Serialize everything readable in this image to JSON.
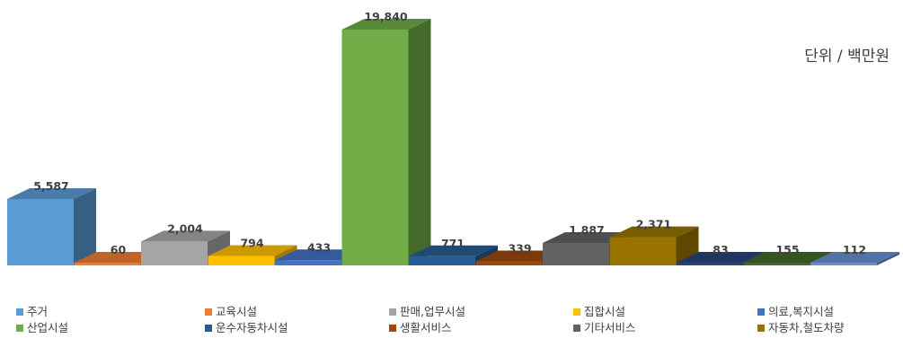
{
  "chart_data": {
    "type": "bar",
    "style": "3d-column",
    "unit_label": "단위 / 백만원",
    "legend_position": "bottom",
    "grid": false,
    "categories": [
      "주거",
      "교육시설",
      "판매,업무시설",
      "집합시설",
      "의료,복지시설",
      "산업시설",
      "운수자동차시설",
      "생활서비스",
      "기타서비스",
      "자동차,철도차량",
      "",
      "",
      ""
    ],
    "values": [
      5587,
      60,
      2004,
      794,
      433,
      19840,
      771,
      339,
      1887,
      2371,
      83,
      155,
      112
    ],
    "value_labels": [
      "5,587",
      "60",
      "2,004",
      "794",
      "433",
      "19,840",
      "771",
      "339",
      "1,887",
      "2,371",
      "83",
      "155",
      "112"
    ],
    "colors": [
      "#5b9bd5",
      "#ed7d31",
      "#a5a5a5",
      "#ffc000",
      "#4472c4",
      "#70ad47",
      "#255e91",
      "#9e480e",
      "#636363",
      "#997300",
      "#264478",
      "#43682b",
      "#698ed0"
    ],
    "legend": [
      {
        "label": "주거",
        "color": "#5b9bd5"
      },
      {
        "label": "교육시설",
        "color": "#ed7d31"
      },
      {
        "label": "판매,업무시설",
        "color": "#a5a5a5"
      },
      {
        "label": "집합시설",
        "color": "#ffc000"
      },
      {
        "label": "의료,복지시설",
        "color": "#4472c4"
      },
      {
        "label": "산업시설",
        "color": "#70ad47"
      },
      {
        "label": "운수자동차시설",
        "color": "#255e91"
      },
      {
        "label": "생활서비스",
        "color": "#9e480e"
      },
      {
        "label": "기타서비스",
        "color": "#636363"
      },
      {
        "label": "자동차,철도차량",
        "color": "#997300"
      }
    ]
  }
}
